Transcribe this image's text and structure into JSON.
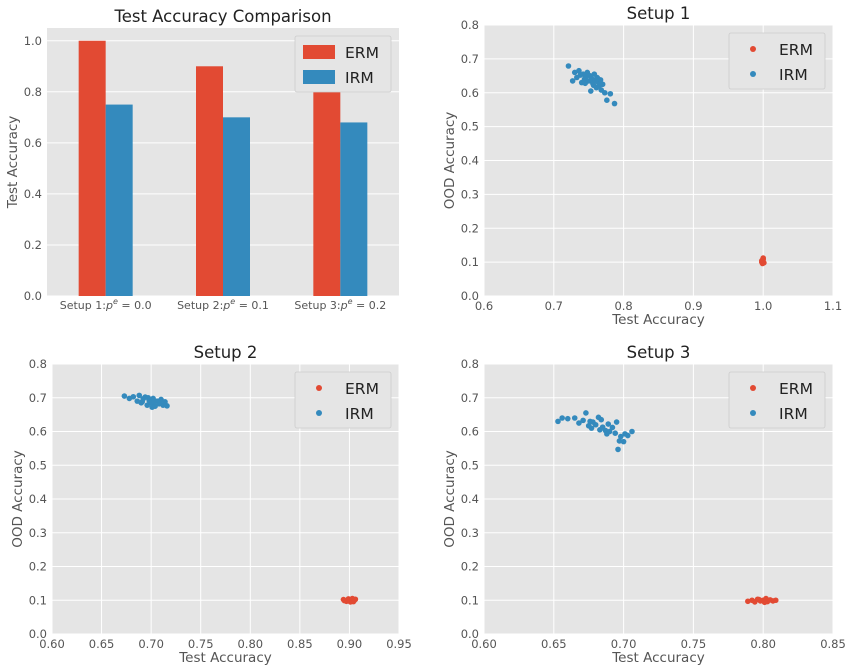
{
  "chart_data": [
    {
      "id": "bar",
      "type": "bar",
      "title": "Test Accuracy Comparison",
      "xlabel": "",
      "ylabel": "Test Accuracy",
      "ylim": [
        0,
        1.05
      ],
      "yticks": [
        0.0,
        0.2,
        0.4,
        0.6,
        0.8,
        1.0
      ],
      "ytick_labels": [
        "0.0",
        "0.2",
        "0.4",
        "0.6",
        "0.8",
        "1.0"
      ],
      "categories": [
        {
          "prefix": "Setup 1:",
          "sup": "e",
          "suffix": " = 0.0"
        },
        {
          "prefix": "Setup 2:",
          "sup": "e",
          "suffix": " = 0.1"
        },
        {
          "prefix": "Setup 3:",
          "sup": "e",
          "suffix": " = 0.2"
        }
      ],
      "series": [
        {
          "name": "ERM",
          "color": "#E24A33",
          "values": [
            1.0,
            0.9,
            0.8
          ]
        },
        {
          "name": "IRM",
          "color": "#348ABD",
          "values": [
            0.75,
            0.7,
            0.68
          ]
        }
      ],
      "grid": true,
      "legend": "top-right"
    },
    {
      "id": "s1",
      "type": "scatter",
      "title": "Setup 1",
      "xlabel": "Test Accuracy",
      "ylabel": "OOD Accuracy",
      "xlim": [
        0.6,
        1.1
      ],
      "ylim": [
        0.0,
        0.8
      ],
      "xticks": [
        0.6,
        0.7,
        0.8,
        0.9,
        1.0,
        1.1
      ],
      "xtick_labels": [
        "0.6",
        "0.7",
        "0.8",
        "0.9",
        "1.0",
        "1.1"
      ],
      "yticks": [
        0.0,
        0.1,
        0.2,
        0.3,
        0.4,
        0.5,
        0.6,
        0.7,
        0.8
      ],
      "ytick_labels": [
        "0.0",
        "0.1",
        "0.2",
        "0.3",
        "0.4",
        "0.5",
        "0.6",
        "0.7",
        "0.8"
      ],
      "series": [
        {
          "name": "ERM",
          "color": "#E24A33",
          "points": [
            [
              0.998,
              0.1
            ],
            [
              1.0,
              0.108
            ],
            [
              0.999,
              0.096
            ],
            [
              1.0,
              0.112
            ],
            [
              0.998,
              0.104
            ],
            [
              1.0,
              0.1
            ],
            [
              0.999,
              0.106
            ],
            [
              1.001,
              0.098
            ]
          ]
        },
        {
          "name": "IRM",
          "color": "#348ABD",
          "points": [
            [
              0.721,
              0.679
            ],
            [
              0.727,
              0.635
            ],
            [
              0.73,
              0.66
            ],
            [
              0.733,
              0.645
            ],
            [
              0.736,
              0.665
            ],
            [
              0.74,
              0.63
            ],
            [
              0.742,
              0.655
            ],
            [
              0.744,
              0.64
            ],
            [
              0.746,
              0.648
            ],
            [
              0.748,
              0.66
            ],
            [
              0.75,
              0.635
            ],
            [
              0.752,
              0.65
            ],
            [
              0.753,
              0.605
            ],
            [
              0.755,
              0.64
            ],
            [
              0.756,
              0.627
            ],
            [
              0.758,
              0.655
            ],
            [
              0.76,
              0.635
            ],
            [
              0.761,
              0.615
            ],
            [
              0.762,
              0.645
            ],
            [
              0.764,
              0.63
            ],
            [
              0.765,
              0.62
            ],
            [
              0.767,
              0.638
            ],
            [
              0.768,
              0.608
            ],
            [
              0.77,
              0.625
            ],
            [
              0.773,
              0.6
            ],
            [
              0.776,
              0.578
            ],
            [
              0.781,
              0.597
            ],
            [
              0.787,
              0.568
            ],
            [
              0.738,
              0.652
            ],
            [
              0.745,
              0.628
            ],
            [
              0.757,
              0.622
            ],
            [
              0.763,
              0.642
            ]
          ]
        }
      ],
      "grid": true,
      "legend": "top-right"
    },
    {
      "id": "s2",
      "type": "scatter",
      "title": "Setup 2",
      "xlabel": "Test Accuracy",
      "ylabel": "OOD Accuracy",
      "xlim": [
        0.6,
        0.95
      ],
      "ylim": [
        0.0,
        0.8
      ],
      "xticks": [
        0.6,
        0.65,
        0.7,
        0.75,
        0.8,
        0.85,
        0.9,
        0.95
      ],
      "xtick_labels": [
        "0.60",
        "0.65",
        "0.70",
        "0.75",
        "0.80",
        "0.85",
        "0.90",
        "0.95"
      ],
      "yticks": [
        0.0,
        0.1,
        0.2,
        0.3,
        0.4,
        0.5,
        0.6,
        0.7,
        0.8
      ],
      "ytick_labels": [
        "0.0",
        "0.1",
        "0.2",
        "0.3",
        "0.4",
        "0.5",
        "0.6",
        "0.7",
        "0.8"
      ],
      "series": [
        {
          "name": "ERM",
          "color": "#E24A33",
          "points": [
            [
              0.894,
              0.102
            ],
            [
              0.897,
              0.097
            ],
            [
              0.899,
              0.104
            ],
            [
              0.9,
              0.099
            ],
            [
              0.902,
              0.101
            ],
            [
              0.904,
              0.096
            ],
            [
              0.906,
              0.103
            ],
            [
              0.895,
              0.099
            ],
            [
              0.901,
              0.095
            ],
            [
              0.903,
              0.105
            ],
            [
              0.898,
              0.1
            ],
            [
              0.905,
              0.1
            ]
          ]
        },
        {
          "name": "IRM",
          "color": "#348ABD",
          "points": [
            [
              0.673,
              0.705
            ],
            [
              0.678,
              0.698
            ],
            [
              0.682,
              0.703
            ],
            [
              0.686,
              0.69
            ],
            [
              0.688,
              0.707
            ],
            [
              0.69,
              0.685
            ],
            [
              0.692,
              0.697
            ],
            [
              0.694,
              0.702
            ],
            [
              0.696,
              0.678
            ],
            [
              0.698,
              0.692
            ],
            [
              0.7,
              0.685
            ],
            [
              0.702,
              0.698
            ],
            [
              0.704,
              0.675
            ],
            [
              0.706,
              0.69
            ],
            [
              0.708,
              0.682
            ],
            [
              0.71,
              0.695
            ],
            [
              0.712,
              0.678
            ],
            [
              0.714,
              0.688
            ],
            [
              0.716,
              0.676
            ],
            [
              0.697,
              0.7
            ],
            [
              0.703,
              0.688
            ],
            [
              0.709,
              0.69
            ],
            [
              0.691,
              0.688
            ],
            [
              0.701,
              0.672
            ]
          ]
        }
      ],
      "grid": true,
      "legend": "top-right"
    },
    {
      "id": "s3",
      "type": "scatter",
      "title": "Setup 3",
      "xlabel": "Test Accuracy",
      "ylabel": "OOD Accuracy",
      "xlim": [
        0.6,
        0.85
      ],
      "ylim": [
        0.0,
        0.8
      ],
      "xticks": [
        0.6,
        0.65,
        0.7,
        0.75,
        0.8,
        0.85
      ],
      "xtick_labels": [
        "0.60",
        "0.65",
        "0.70",
        "0.75",
        "0.80",
        "0.85"
      ],
      "yticks": [
        0.0,
        0.1,
        0.2,
        0.3,
        0.4,
        0.5,
        0.6,
        0.7,
        0.8
      ],
      "ytick_labels": [
        "0.0",
        "0.1",
        "0.2",
        "0.3",
        "0.4",
        "0.5",
        "0.6",
        "0.7",
        "0.8"
      ],
      "series": [
        {
          "name": "ERM",
          "color": "#E24A33",
          "points": [
            [
              0.789,
              0.097
            ],
            [
              0.792,
              0.1
            ],
            [
              0.794,
              0.095
            ],
            [
              0.796,
              0.103
            ],
            [
              0.798,
              0.098
            ],
            [
              0.8,
              0.1
            ],
            [
              0.802,
              0.105
            ],
            [
              0.803,
              0.096
            ],
            [
              0.805,
              0.101
            ],
            [
              0.807,
              0.098
            ],
            [
              0.809,
              0.1
            ],
            [
              0.797,
              0.102
            ],
            [
              0.801,
              0.094
            ]
          ]
        },
        {
          "name": "IRM",
          "color": "#348ABD",
          "points": [
            [
              0.653,
              0.63
            ],
            [
              0.656,
              0.64
            ],
            [
              0.66,
              0.638
            ],
            [
              0.665,
              0.64
            ],
            [
              0.668,
              0.625
            ],
            [
              0.671,
              0.633
            ],
            [
              0.673,
              0.655
            ],
            [
              0.675,
              0.617
            ],
            [
              0.677,
              0.61
            ],
            [
              0.678,
              0.628
            ],
            [
              0.68,
              0.62
            ],
            [
              0.682,
              0.642
            ],
            [
              0.683,
              0.605
            ],
            [
              0.685,
              0.613
            ],
            [
              0.687,
              0.603
            ],
            [
              0.689,
              0.622
            ],
            [
              0.69,
              0.6
            ],
            [
              0.692,
              0.612
            ],
            [
              0.694,
              0.595
            ],
            [
              0.695,
              0.628
            ],
            [
              0.697,
              0.572
            ],
            [
              0.698,
              0.585
            ],
            [
              0.7,
              0.57
            ],
            [
              0.701,
              0.593
            ],
            [
              0.703,
              0.588
            ],
            [
              0.706,
              0.6
            ],
            [
              0.696,
              0.547
            ],
            [
              0.684,
              0.635
            ],
            [
              0.688,
              0.593
            ],
            [
              0.676,
              0.63
            ]
          ]
        }
      ],
      "grid": true,
      "legend": "top-right"
    }
  ]
}
